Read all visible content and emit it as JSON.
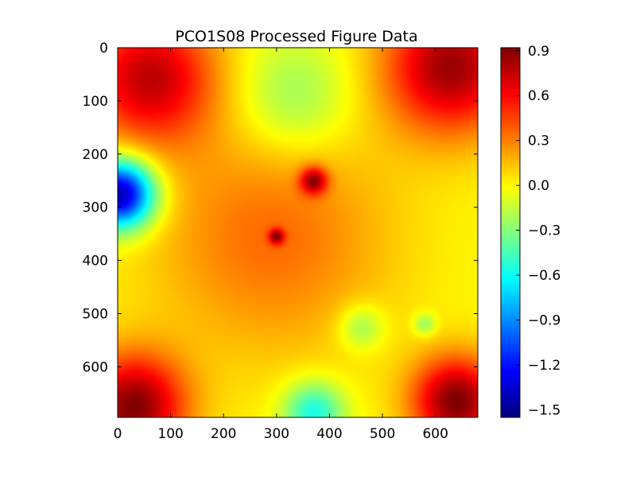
{
  "chart_data": {
    "type": "heatmap",
    "title": "PCO1S08 Processed Figure Data",
    "xlabel": "",
    "ylabel": "",
    "colormap": "jet",
    "xlim": [
      0,
      680
    ],
    "ylim": [
      695,
      0
    ],
    "x_ticks": [
      "0",
      "100",
      "200",
      "300",
      "400",
      "500",
      "600"
    ],
    "x_tick_values": [
      0,
      100,
      200,
      300,
      400,
      500,
      600
    ],
    "y_ticks": [
      "0",
      "100",
      "200",
      "300",
      "400",
      "500",
      "600"
    ],
    "y_tick_values": [
      0,
      100,
      200,
      300,
      400,
      500,
      600
    ],
    "colorbar": {
      "range": [
        -1.55,
        0.92
      ],
      "ticks": [
        "0.9",
        "0.6",
        "0.3",
        "0.0",
        "−0.3",
        "−0.6",
        "−0.9",
        "−1.2",
        "−1.5"
      ],
      "tick_values": [
        0.9,
        0.6,
        0.3,
        0.0,
        -0.3,
        -0.6,
        -0.9,
        -1.2,
        -1.5
      ]
    },
    "grid": false,
    "background_value": 0.0,
    "features": [
      {
        "x": 30,
        "y": 20,
        "value": 0.9,
        "spread": 70
      },
      {
        "x": 640,
        "y": 30,
        "value": 0.92,
        "spread": 60
      },
      {
        "x": 630,
        "y": 660,
        "value": 0.85,
        "spread": 90
      },
      {
        "x": 60,
        "y": 640,
        "value": 0.75,
        "spread": 90
      },
      {
        "x": 290,
        "y": 340,
        "value": 0.35,
        "spread": 160
      },
      {
        "x": 370,
        "y": 445,
        "value": 0.7,
        "spread": 18
      },
      {
        "x": 300,
        "y": 340,
        "value": 0.6,
        "spread": 10
      },
      {
        "x": 5,
        "y": 420,
        "value": -1.5,
        "spread": 45
      },
      {
        "x": 370,
        "y": 10,
        "value": -0.6,
        "spread": 40
      },
      {
        "x": 460,
        "y": 170,
        "value": -0.3,
        "spread": 30
      },
      {
        "x": 580,
        "y": 175,
        "value": -0.3,
        "spread": 15
      },
      {
        "x": 330,
        "y": 600,
        "value": -0.3,
        "spread": 80
      }
    ]
  }
}
